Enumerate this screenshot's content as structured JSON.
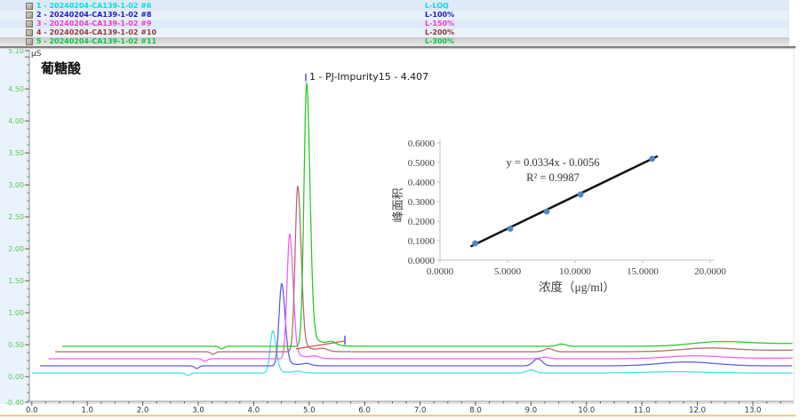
{
  "legend": {
    "rows": [
      {
        "name": "1 - 20240204-CA139-1-02 #6",
        "level": "L-LOQ",
        "color": "#00E0E6",
        "selected": false
      },
      {
        "name": "2 - 20240204-CA139-1-02 #8",
        "level": "L-100%",
        "color": "#1A1ACC",
        "selected": false
      },
      {
        "name": "3 - 20240204-CA139-1-02 #9",
        "level": "L-150%",
        "color": "#F03CC8",
        "selected": false
      },
      {
        "name": "4 - 20240204-CA139-1-02 #10",
        "level": "L-200%",
        "color": "#943939",
        "selected": false
      },
      {
        "name": "5 - 20240204-CA139-1-02 #11",
        "level": "L-300%",
        "color": "#0AC83C",
        "selected": true
      }
    ]
  },
  "chart_data": [
    {
      "type": "line",
      "title": "葡糖酸",
      "unit": "µS",
      "xlabel": "",
      "ylabel": "µS",
      "xlim": [
        0,
        13.75
      ],
      "ylim": [
        -0.4,
        5.1
      ],
      "x_major_ticks": [
        0,
        1,
        2,
        3,
        4,
        5,
        6,
        7,
        8,
        9,
        10,
        11,
        12,
        13
      ],
      "y_ticks": [
        {
          "v": 5.1,
          "label": "5.10"
        },
        {
          "v": 5.0,
          "label": ""
        },
        {
          "v": 4.5,
          "label": "4.50"
        },
        {
          "v": 4.0,
          "label": "4.00"
        },
        {
          "v": 3.5,
          "label": "3.50"
        },
        {
          "v": 3.0,
          "label": "3.00"
        },
        {
          "v": 2.5,
          "label": "2.50"
        },
        {
          "v": 2.0,
          "label": "2.00"
        },
        {
          "v": 1.5,
          "label": "1.50"
        },
        {
          "v": 1.0,
          "label": "1.00"
        },
        {
          "v": 0.5,
          "label": "0.50"
        },
        {
          "v": 0.0,
          "label": "0.00"
        },
        {
          "v": -0.4,
          "label": "-0.40"
        }
      ],
      "tick_label_color": "#4FCB4F",
      "x_label_color": "#333333",
      "peak_annotation": "1 - PJ-Impurity15 - 4.407",
      "series": [
        {
          "name": "L-LOQ",
          "color": "#3CE2E8",
          "start_t": 0.0,
          "baseline_uS": 0.058,
          "peak_time_min": 4.345,
          "peak_height_uS": 0.66,
          "bump_t": 9.0,
          "bump_h": 0.045,
          "hump_t": 11.6,
          "hump_h": 0.02,
          "end_h": 0.0
        },
        {
          "name": "L-100%",
          "color": "#5A5AEE",
          "start_t": 0.15,
          "baseline_uS": 0.169,
          "peak_time_min": 4.505,
          "peak_height_uS": 1.29,
          "bump_t": 9.12,
          "bump_h": 0.11,
          "hump_t": 11.82,
          "hump_h": 0.06,
          "end_h": 0.0
        },
        {
          "name": "L-150%",
          "color": "#EE5FEE",
          "start_t": 0.3,
          "baseline_uS": 0.28,
          "peak_time_min": 4.65,
          "peak_height_uS": 1.96,
          "bump_t": 9.25,
          "bump_h": 0.025,
          "hump_t": 11.95,
          "hump_h": 0.045,
          "end_h": 0.01
        },
        {
          "name": "L-200%",
          "color": "#AD6A6A",
          "start_t": 0.42,
          "baseline_uS": 0.39,
          "peak_time_min": 4.795,
          "peak_height_uS": 2.6,
          "bump_t": 9.32,
          "bump_h": 0.05,
          "hump_t": 12.2,
          "hump_h": 0.055,
          "end_h": 0.025
        },
        {
          "name": "L-300%",
          "color": "#1FCC1F",
          "start_t": 0.55,
          "baseline_uS": 0.475,
          "peak_time_min": 4.955,
          "peak_height_uS": 4.12,
          "bump_t": 9.55,
          "bump_h": 0.035,
          "hump_t": 12.4,
          "hump_h": 0.065,
          "end_h": 0.045
        }
      ],
      "annotations": {
        "apex_marker": {
          "t": 4.94,
          "v1": 4.62,
          "v2": 4.74,
          "color": "#5555DD"
        },
        "integration_line": {
          "t1": 4.763,
          "v1": 0.433,
          "t2": 5.645,
          "v2": 0.558,
          "color": "#D84848"
        },
        "end_marker": {
          "t": 5.645,
          "v1": 0.5,
          "v2": 0.64,
          "color": "#5555DD"
        }
      }
    },
    {
      "type": "scatter",
      "x": [
        2.6,
        5.2,
        7.9,
        10.4,
        15.7
      ],
      "y": [
        0.086,
        0.161,
        0.249,
        0.336,
        0.519
      ],
      "equation": "y = 0.0334x - 0.0056",
      "r2": "R² = 0.9987",
      "slope": 0.0334,
      "intercept": -0.0056,
      "xlabel": "浓度（μg/ml）",
      "ylabel": "峰面积",
      "xlim": [
        0,
        20
      ],
      "ylim": [
        0,
        0.6
      ],
      "x_ticks": [
        0,
        5,
        10,
        15,
        20
      ],
      "y_ticks": [
        0,
        0.1,
        0.2,
        0.3,
        0.4,
        0.5,
        0.6
      ],
      "point_color": "#4E87C6",
      "line_color": "#141414",
      "axis_color": "#BFBFBF",
      "trend_x1": 2.33,
      "trend_x2": 16.05
    }
  ]
}
